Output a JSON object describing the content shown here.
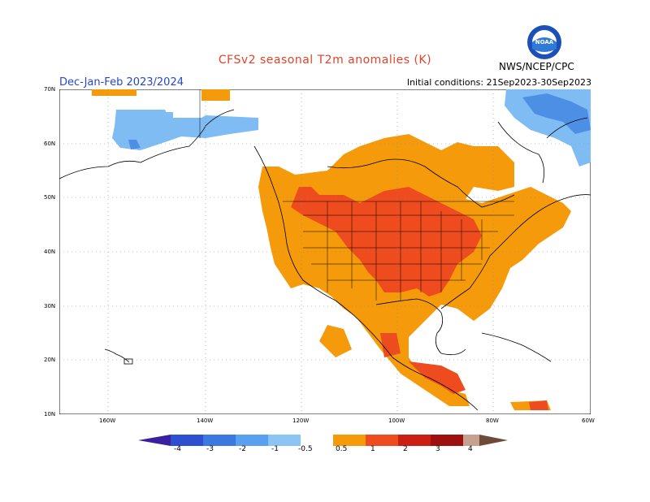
{
  "header": {
    "title": "CFSv2 seasonal T2m anomalies (K)",
    "season": "Dec-Jan-Feb 2023/2024",
    "initial_conditions": "Initial conditions: 21Sep2023-30Sep2023",
    "agency": "NWS/NCEP/CPC",
    "logo_text": "NOAA"
  },
  "axes": {
    "lat_labels": [
      "70N",
      "60N",
      "50N",
      "40N",
      "30N",
      "20N",
      "10N"
    ],
    "lon_labels": [
      "160W",
      "140W",
      "120W",
      "100W",
      "80W",
      "60W"
    ]
  },
  "colorbar": {
    "labels": [
      "-4",
      "-3",
      "-2",
      "-1",
      "-0.5",
      "0.5",
      "1",
      "2",
      "3",
      "4"
    ],
    "colors": [
      "#3a1fa0",
      "#2e50d0",
      "#3c78e0",
      "#5aa0f0",
      "#8cc4f4",
      "#ffffff",
      "#f59a0a",
      "#ee4b1e",
      "#cc1f14",
      "#9e1010",
      "#c8a090",
      "#6e4a3a"
    ]
  },
  "legend_colors": {
    "light_blue": "#7fbcf3",
    "mid_blue": "#4e8fe6",
    "orange": "#f59a0a",
    "red_orange": "#ee4b1e",
    "dark_red": "#b01010"
  }
}
